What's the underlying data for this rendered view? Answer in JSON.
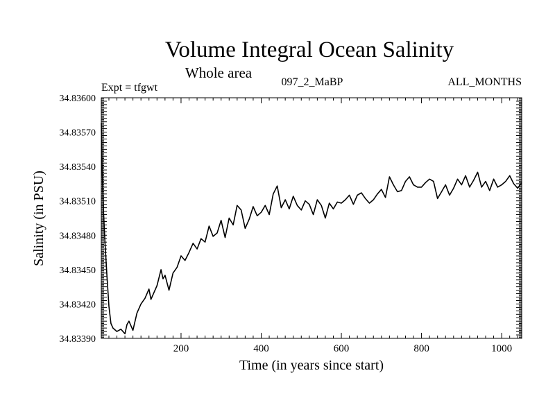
{
  "chart_data": {
    "type": "line",
    "title": "Volume Integral Ocean Salinity",
    "subtitle": "Whole area",
    "annotations": {
      "left": "Expt = tfgwt",
      "center": "097_2_MaBP",
      "right": "ALL_MONTHS"
    },
    "xlabel": "Time (in years since start)",
    "ylabel": "Salinity (in PSU)",
    "xlim": [
      1,
      1050
    ],
    "ylim": [
      34.8339,
      34.836
    ],
    "x_ticks": [
      200,
      400,
      600,
      800,
      1000
    ],
    "x_tick_labels": [
      "200",
      "400",
      "600",
      "800",
      "1000"
    ],
    "y_ticks": [
      34.8339,
      34.8342,
      34.8345,
      34.8348,
      34.8351,
      34.8354,
      34.8357,
      34.836
    ],
    "y_tick_labels": [
      "34.83390",
      "34.83420",
      "34.83450",
      "34.83480",
      "34.83510",
      "34.83540",
      "34.83570",
      "34.83600"
    ],
    "series": [
      {
        "name": "Salinity",
        "color": "#000000",
        "x": [
          1,
          3,
          6,
          10,
          15,
          20,
          25,
          30,
          40,
          50,
          60,
          65,
          70,
          80,
          90,
          100,
          110,
          120,
          125,
          130,
          140,
          150,
          155,
          160,
          170,
          180,
          190,
          200,
          210,
          220,
          230,
          240,
          250,
          260,
          270,
          280,
          290,
          300,
          310,
          320,
          330,
          340,
          350,
          360,
          370,
          380,
          390,
          400,
          410,
          420,
          430,
          440,
          450,
          460,
          470,
          480,
          490,
          500,
          510,
          520,
          530,
          540,
          550,
          560,
          570,
          580,
          590,
          600,
          610,
          620,
          630,
          640,
          650,
          660,
          670,
          680,
          690,
          700,
          710,
          720,
          730,
          740,
          750,
          760,
          770,
          780,
          790,
          800,
          810,
          820,
          830,
          840,
          850,
          860,
          870,
          880,
          890,
          900,
          910,
          920,
          930,
          940,
          950,
          960,
          970,
          980,
          990,
          1000,
          1010,
          1020,
          1030,
          1040,
          1050
        ],
        "y": [
          34.83578,
          34.83538,
          34.83505,
          34.83475,
          34.83445,
          34.83418,
          34.83403,
          34.83399,
          34.83396,
          34.83398,
          34.83394,
          34.83402,
          34.83405,
          34.83397,
          34.83412,
          34.8342,
          34.83425,
          34.83433,
          34.83424,
          34.83428,
          34.83436,
          34.8345,
          34.83442,
          34.83445,
          34.83432,
          34.83447,
          34.83452,
          34.83462,
          34.83458,
          34.83465,
          34.83473,
          34.83468,
          34.83477,
          34.83474,
          34.83488,
          34.83479,
          34.83482,
          34.83493,
          34.83478,
          34.83495,
          34.83489,
          34.83506,
          34.83502,
          34.83486,
          34.83494,
          34.83505,
          34.83497,
          34.835,
          34.83506,
          34.83498,
          34.83516,
          34.83523,
          34.83504,
          34.83511,
          34.83503,
          34.83514,
          34.83506,
          34.83502,
          34.8351,
          34.83507,
          34.83498,
          34.83511,
          34.83506,
          34.83495,
          34.83508,
          34.83503,
          34.83509,
          34.83508,
          34.83511,
          34.83515,
          34.83507,
          34.83515,
          34.83517,
          34.83512,
          34.83508,
          34.83511,
          34.83516,
          34.8352,
          34.83513,
          34.83531,
          34.83524,
          34.83518,
          34.83519,
          34.83527,
          34.83531,
          34.83524,
          34.83522,
          34.83522,
          34.83526,
          34.83529,
          34.83527,
          34.83512,
          34.83518,
          34.83524,
          34.83515,
          34.83521,
          34.83529,
          34.83524,
          34.83532,
          34.83522,
          34.83528,
          34.83535,
          34.83522,
          34.83527,
          34.83519,
          34.83529,
          34.83522,
          34.83524,
          34.83527,
          34.83532,
          34.83525,
          34.83521,
          34.83526
        ]
      }
    ]
  }
}
